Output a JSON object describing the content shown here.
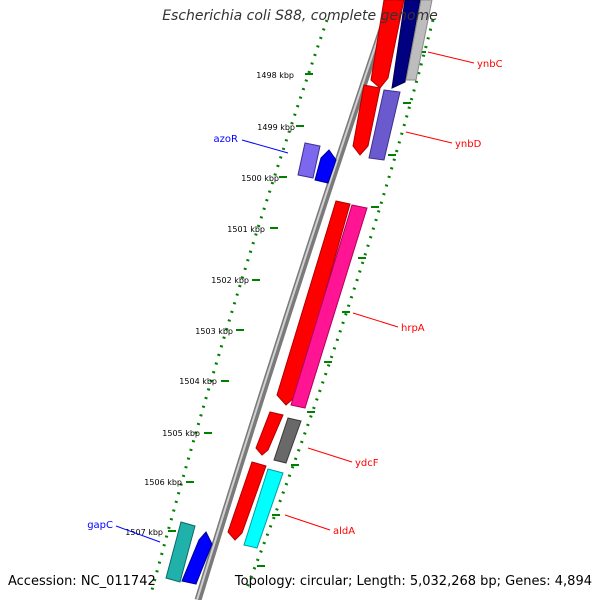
{
  "title": "Escherichia coli S88, complete genome",
  "footer": {
    "accession": "Accession: NC_011742",
    "summary": "Topology: circular; Length: 5,032,268 bp; Genes: 4,894"
  },
  "ticks": [
    {
      "label": "1498 kbp"
    },
    {
      "label": "1499 kbp"
    },
    {
      "label": "1500 kbp"
    },
    {
      "label": "1501 kbp"
    },
    {
      "label": "1502 kbp"
    },
    {
      "label": "1503 kbp"
    },
    {
      "label": "1504 kbp"
    },
    {
      "label": "1505 kbp"
    },
    {
      "label": "1506 kbp"
    },
    {
      "label": "1507 kbp"
    }
  ],
  "genes": [
    {
      "label": "ynbC",
      "color": "#ff0000",
      "strand": "reverse"
    },
    {
      "label": "ynbD",
      "color": "#ff0000",
      "strand": "reverse"
    },
    {
      "label": "azoR",
      "color": "#0000ff",
      "strand": "forward"
    },
    {
      "label": "hrpA",
      "color": "#ff0000",
      "strand": "reverse"
    },
    {
      "label": "ydcF",
      "color": "#ff0000",
      "strand": "reverse"
    },
    {
      "label": "aldA",
      "color": "#ff0000",
      "strand": "reverse"
    },
    {
      "label": "gapC",
      "color": "#0000ff",
      "strand": "forward"
    }
  ],
  "colors": {
    "backbone": "#808080",
    "tick": "#008000",
    "forward_label": "#0000ff",
    "reverse_label": "#ff0000",
    "red_gene": "#ff0000",
    "blue_gene": "#0000ff",
    "purple_gene": "#6a5acd",
    "pink_gene": "#ff1493",
    "gray_gene": "#696969",
    "cyan_gene": "#00ced1",
    "navy_gene": "#000080"
  }
}
